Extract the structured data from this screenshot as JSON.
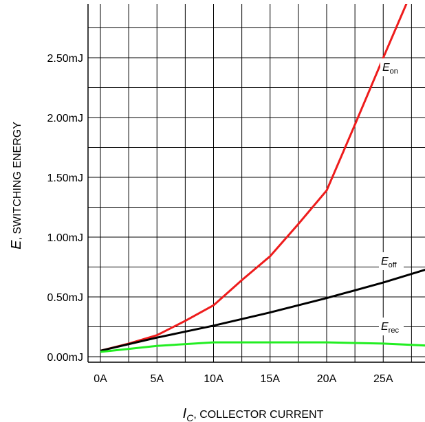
{
  "chart_data": {
    "type": "line",
    "xlabel": {
      "symbol": "I",
      "subscript": "C",
      "text": ", COLLECTOR CURRENT"
    },
    "ylabel": {
      "symbol": "E",
      "text": ", SWITCHING ENERGY"
    },
    "xlim": [
      0,
      29.5
    ],
    "ylim": [
      0,
      3.0
    ],
    "x_ticks": [
      {
        "value": 0,
        "label": "0A"
      },
      {
        "value": 5,
        "label": "5A"
      },
      {
        "value": 10,
        "label": "10A"
      },
      {
        "value": 15,
        "label": "15A"
      },
      {
        "value": 20,
        "label": "20A"
      },
      {
        "value": 25,
        "label": "25A"
      }
    ],
    "y_ticks": [
      {
        "value": 0,
        "label": "0.00mJ"
      },
      {
        "value": 0.5,
        "label": "0.50mJ"
      },
      {
        "value": 1.0,
        "label": "1.00mJ"
      },
      {
        "value": 1.5,
        "label": "1.50mJ"
      },
      {
        "value": 2.0,
        "label": "2.00mJ"
      },
      {
        "value": 2.5,
        "label": "2.50mJ"
      }
    ],
    "grid": true,
    "series": [
      {
        "name": "E_on",
        "label_main": "E",
        "label_sub": "on",
        "color": "#ee1c1c",
        "x": [
          0,
          2.5,
          5,
          7.5,
          10,
          12.5,
          15,
          17.5,
          20,
          22.5,
          25,
          27.5
        ],
        "y": [
          0.05,
          0.11,
          0.18,
          0.3,
          0.43,
          0.64,
          0.84,
          1.11,
          1.39,
          1.94,
          2.5,
          3.05
        ]
      },
      {
        "name": "E_off",
        "label_main": "E",
        "label_sub": "off",
        "color": "#000000",
        "x": [
          0,
          5,
          10,
          15,
          20,
          25,
          29.5
        ],
        "y": [
          0.05,
          0.16,
          0.26,
          0.37,
          0.49,
          0.62,
          0.75
        ]
      },
      {
        "name": "E_rec",
        "label_main": "E",
        "label_sub": "rec",
        "color": "#22ee22",
        "x": [
          0,
          5,
          10,
          15,
          20,
          25,
          29.5
        ],
        "y": [
          0.04,
          0.09,
          0.12,
          0.12,
          0.12,
          0.11,
          0.09
        ]
      }
    ]
  }
}
